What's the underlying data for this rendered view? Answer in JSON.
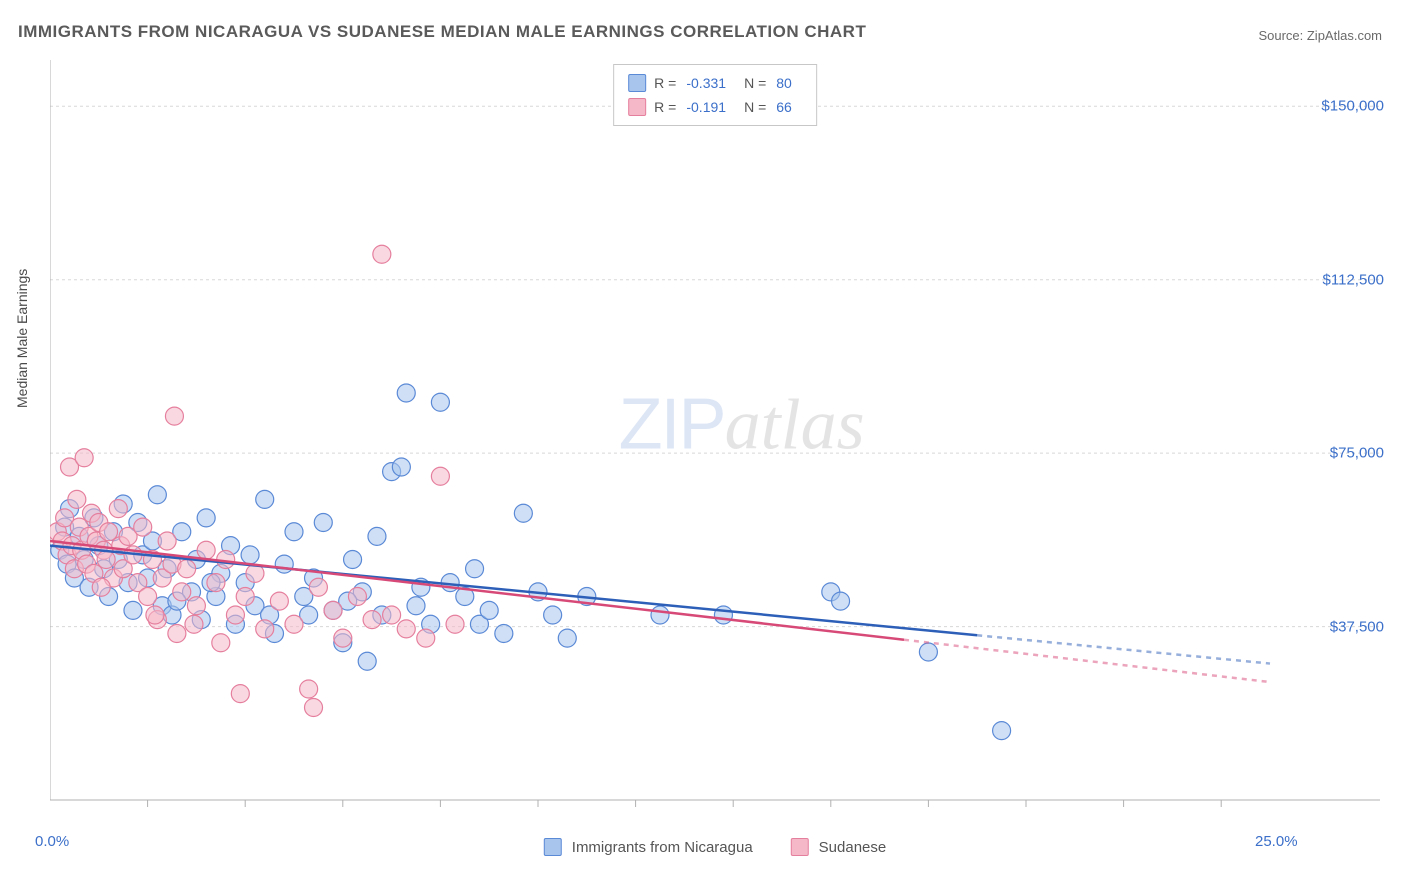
{
  "title": "IMMIGRANTS FROM NICARAGUA VS SUDANESE MEDIAN MALE EARNINGS CORRELATION CHART",
  "source": "Source: ZipAtlas.com",
  "watermark_zip": "ZIP",
  "watermark_atlas": "atlas",
  "y_axis_label": "Median Male Earnings",
  "chart": {
    "type": "scatter",
    "xlim": [
      0,
      25
    ],
    "ylim": [
      0,
      160000
    ],
    "x_tick_labels": [
      {
        "x": 0,
        "label": "0.0%"
      },
      {
        "x": 25,
        "label": "25.0%"
      }
    ],
    "x_minor_ticks": [
      2,
      4,
      6,
      8,
      10,
      12,
      14,
      16,
      18,
      20,
      22,
      24
    ],
    "y_ticks": [
      {
        "y": 37500,
        "label": "$37,500"
      },
      {
        "y": 75000,
        "label": "$75,000"
      },
      {
        "y": 112500,
        "label": "$112,500"
      },
      {
        "y": 150000,
        "label": "$150,000"
      }
    ],
    "grid_color": "#d8d8d8",
    "axis_color": "#b0b0b0",
    "background_color": "#ffffff",
    "marker_radius": 9,
    "marker_opacity": 0.55,
    "line_width": 2.5,
    "series": [
      {
        "name": "Immigrants from Nicaragua",
        "fill": "#a8c5ed",
        "stroke": "#5a89d6",
        "line_color": "#2d5fb8",
        "trendline": {
          "x1": 0,
          "y1": 55000,
          "x2": 25,
          "y2": 29500,
          "dashed_from": 19
        },
        "R": "-0.331",
        "N": "80",
        "points": [
          [
            0.2,
            54000
          ],
          [
            0.3,
            59000
          ],
          [
            0.35,
            51000
          ],
          [
            0.4,
            63000
          ],
          [
            0.5,
            48000
          ],
          [
            0.6,
            57000
          ],
          [
            0.7,
            52000
          ],
          [
            0.8,
            46000
          ],
          [
            0.9,
            61000
          ],
          [
            1.0,
            55000
          ],
          [
            1.1,
            50000
          ],
          [
            1.2,
            44000
          ],
          [
            1.3,
            58000
          ],
          [
            1.4,
            52000
          ],
          [
            1.5,
            64000
          ],
          [
            1.6,
            47000
          ],
          [
            1.7,
            41000
          ],
          [
            1.8,
            60000
          ],
          [
            1.9,
            53000
          ],
          [
            2.0,
            48000
          ],
          [
            2.1,
            56000
          ],
          [
            2.2,
            66000
          ],
          [
            2.3,
            42000
          ],
          [
            2.4,
            50000
          ],
          [
            2.5,
            40000
          ],
          [
            2.7,
            58000
          ],
          [
            2.9,
            45000
          ],
          [
            3.0,
            52000
          ],
          [
            3.1,
            39000
          ],
          [
            3.2,
            61000
          ],
          [
            3.4,
            44000
          ],
          [
            3.5,
            49000
          ],
          [
            3.7,
            55000
          ],
          [
            3.8,
            38000
          ],
          [
            4.0,
            47000
          ],
          [
            4.2,
            42000
          ],
          [
            4.4,
            65000
          ],
          [
            4.5,
            40000
          ],
          [
            4.8,
            51000
          ],
          [
            5.0,
            58000
          ],
          [
            5.2,
            44000
          ],
          [
            5.4,
            48000
          ],
          [
            5.6,
            60000
          ],
          [
            5.8,
            41000
          ],
          [
            6.0,
            34000
          ],
          [
            6.2,
            52000
          ],
          [
            6.4,
            45000
          ],
          [
            6.5,
            30000
          ],
          [
            6.7,
            57000
          ],
          [
            7.0,
            71000
          ],
          [
            7.2,
            72000
          ],
          [
            7.3,
            88000
          ],
          [
            7.5,
            42000
          ],
          [
            7.8,
            38000
          ],
          [
            8.0,
            86000
          ],
          [
            8.2,
            47000
          ],
          [
            8.5,
            44000
          ],
          [
            8.8,
            38000
          ],
          [
            9.0,
            41000
          ],
          [
            9.3,
            36000
          ],
          [
            9.7,
            62000
          ],
          [
            10.0,
            45000
          ],
          [
            10.3,
            40000
          ],
          [
            10.6,
            35000
          ],
          [
            11.0,
            44000
          ],
          [
            12.5,
            40000
          ],
          [
            13.8,
            40000
          ],
          [
            16.0,
            45000
          ],
          [
            16.2,
            43000
          ],
          [
            18.0,
            32000
          ],
          [
            19.5,
            15000
          ],
          [
            2.6,
            43000
          ],
          [
            3.3,
            47000
          ],
          [
            4.1,
            53000
          ],
          [
            4.6,
            36000
          ],
          [
            5.3,
            40000
          ],
          [
            6.1,
            43000
          ],
          [
            6.8,
            40000
          ],
          [
            7.6,
            46000
          ],
          [
            8.7,
            50000
          ]
        ]
      },
      {
        "name": "Sudanese",
        "fill": "#f5b8c8",
        "stroke": "#e57f9e",
        "line_color": "#d74a78",
        "trendline": {
          "x1": 0,
          "y1": 56000,
          "x2": 25,
          "y2": 25500,
          "dashed_from": 17.5
        },
        "R": "-0.191",
        "N": "66",
        "points": [
          [
            0.15,
            58000
          ],
          [
            0.25,
            56000
          ],
          [
            0.3,
            61000
          ],
          [
            0.35,
            53000
          ],
          [
            0.4,
            72000
          ],
          [
            0.45,
            55000
          ],
          [
            0.5,
            50000
          ],
          [
            0.55,
            65000
          ],
          [
            0.6,
            59000
          ],
          [
            0.65,
            54000
          ],
          [
            0.7,
            74000
          ],
          [
            0.75,
            51000
          ],
          [
            0.8,
            57000
          ],
          [
            0.85,
            62000
          ],
          [
            0.9,
            49000
          ],
          [
            0.95,
            56000
          ],
          [
            1.0,
            60000
          ],
          [
            1.1,
            54000
          ],
          [
            1.15,
            52000
          ],
          [
            1.2,
            58000
          ],
          [
            1.3,
            48000
          ],
          [
            1.4,
            63000
          ],
          [
            1.45,
            55000
          ],
          [
            1.5,
            50000
          ],
          [
            1.6,
            57000
          ],
          [
            1.7,
            53000
          ],
          [
            1.8,
            47000
          ],
          [
            1.9,
            59000
          ],
          [
            2.0,
            44000
          ],
          [
            2.1,
            52000
          ],
          [
            2.2,
            39000
          ],
          [
            2.3,
            48000
          ],
          [
            2.4,
            56000
          ],
          [
            2.5,
            51000
          ],
          [
            2.55,
            83000
          ],
          [
            2.6,
            36000
          ],
          [
            2.7,
            45000
          ],
          [
            2.8,
            50000
          ],
          [
            3.0,
            42000
          ],
          [
            3.2,
            54000
          ],
          [
            3.4,
            47000
          ],
          [
            3.5,
            34000
          ],
          [
            3.6,
            52000
          ],
          [
            3.8,
            40000
          ],
          [
            3.9,
            23000
          ],
          [
            4.0,
            44000
          ],
          [
            4.2,
            49000
          ],
          [
            4.4,
            37000
          ],
          [
            4.7,
            43000
          ],
          [
            5.0,
            38000
          ],
          [
            5.3,
            24000
          ],
          [
            5.4,
            20000
          ],
          [
            5.5,
            46000
          ],
          [
            5.8,
            41000
          ],
          [
            6.0,
            35000
          ],
          [
            6.3,
            44000
          ],
          [
            6.6,
            39000
          ],
          [
            6.8,
            118000
          ],
          [
            7.0,
            40000
          ],
          [
            7.3,
            37000
          ],
          [
            7.7,
            35000
          ],
          [
            8.0,
            70000
          ],
          [
            8.3,
            38000
          ],
          [
            1.05,
            46000
          ],
          [
            2.15,
            40000
          ],
          [
            2.95,
            38000
          ]
        ]
      }
    ]
  },
  "correlation_legend": {
    "r_label": "R = ",
    "n_label": "N = "
  },
  "bottom_legend": [
    {
      "label": "Immigrants from Nicaragua",
      "fill": "#a8c5ed",
      "stroke": "#5a89d6"
    },
    {
      "label": "Sudanese",
      "fill": "#f5b8c8",
      "stroke": "#e57f9e"
    }
  ]
}
